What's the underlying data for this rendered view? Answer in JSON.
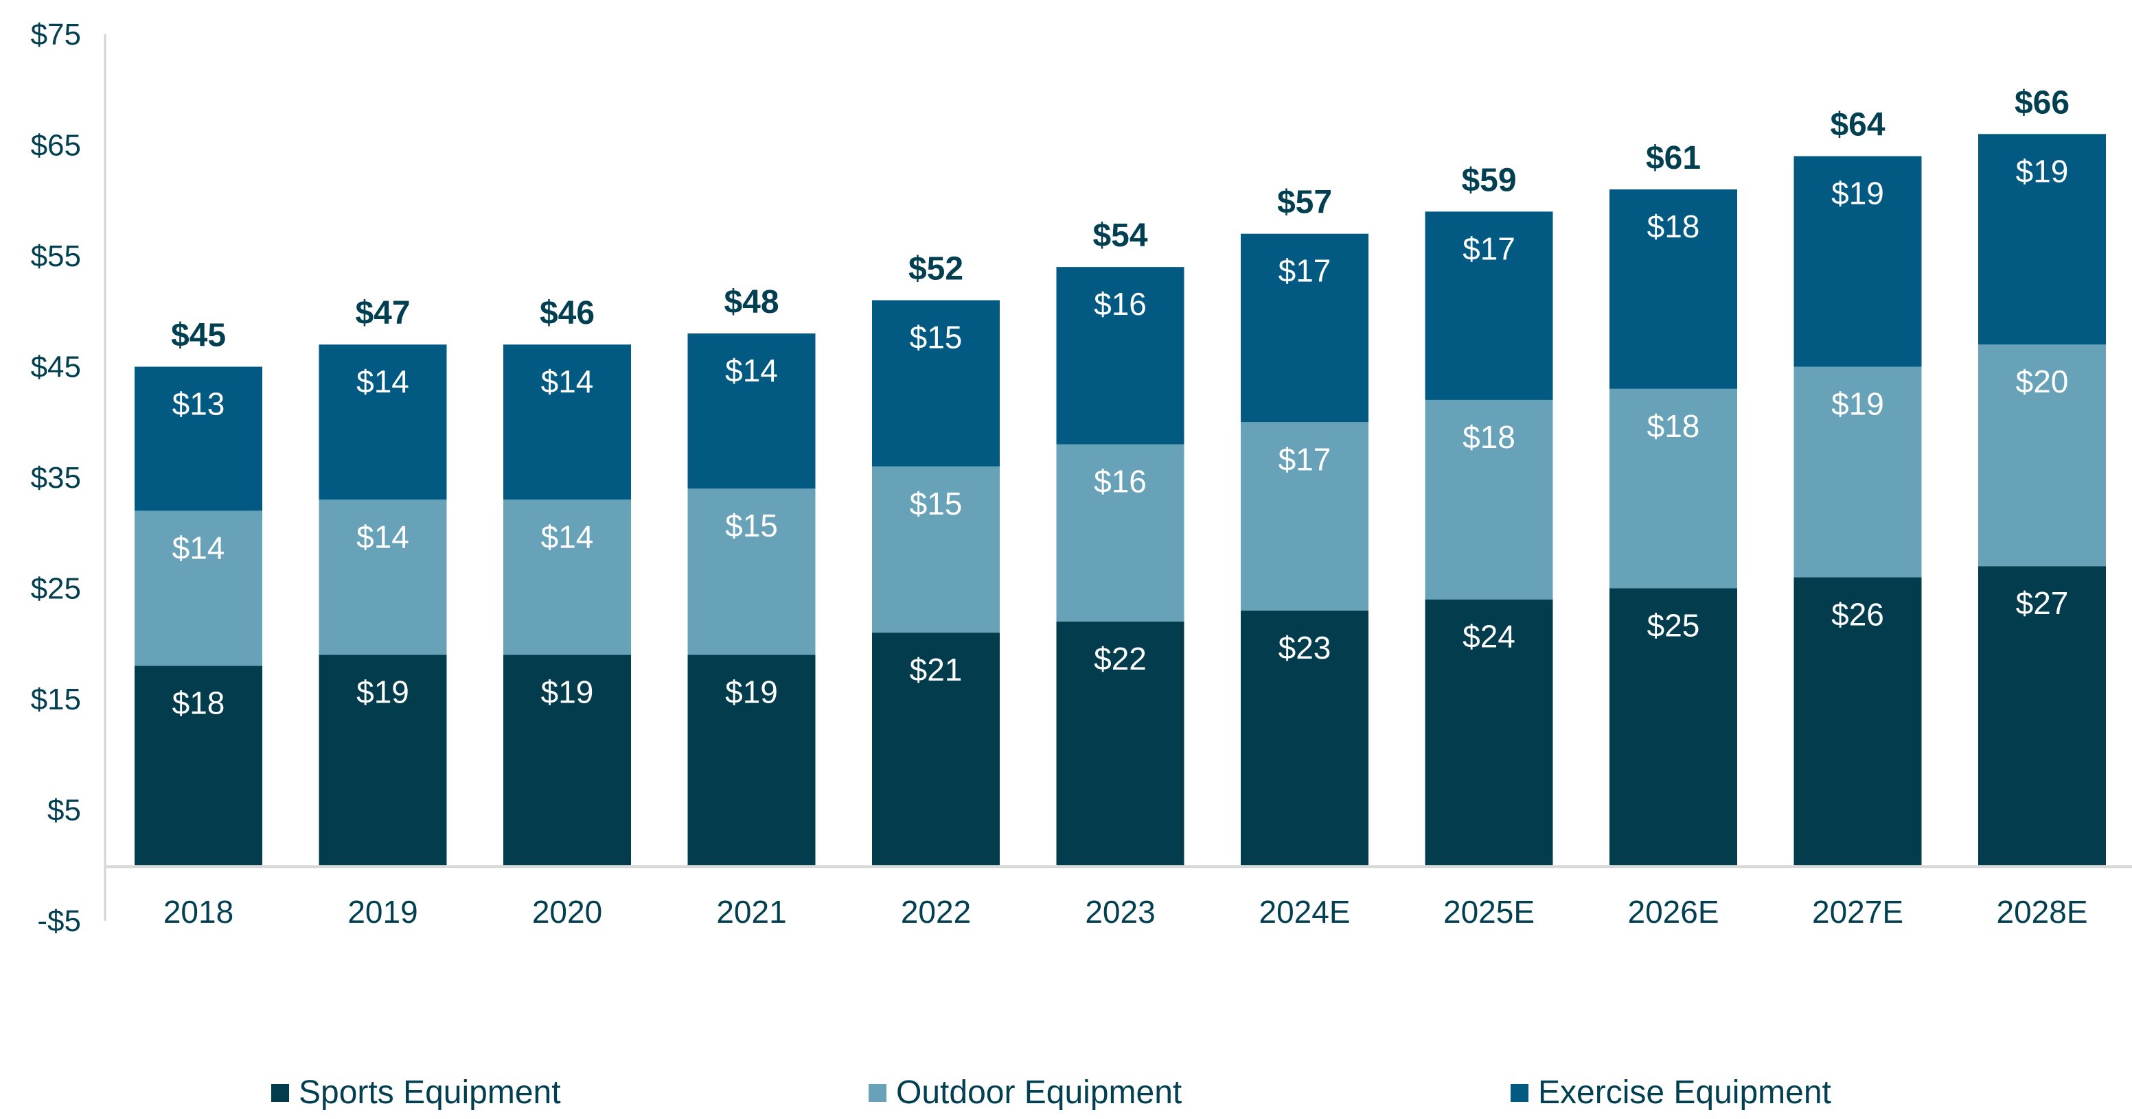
{
  "chart_data": {
    "type": "bar",
    "stacked": true,
    "title": "",
    "xlabel": "",
    "ylabel": "",
    "ylim": [
      -5,
      75
    ],
    "yticks": [
      75,
      65,
      55,
      45,
      35,
      25,
      15,
      5,
      -5
    ],
    "ytick_labels": [
      "$75",
      "$65",
      "$55",
      "$45",
      "$35",
      "$25",
      "$15",
      "$5",
      "-$5"
    ],
    "categories": [
      "2018",
      "2019",
      "2020",
      "2021",
      "2022",
      "2023",
      "2024E",
      "2025E",
      "2026E",
      "2027E",
      "2028E"
    ],
    "series": [
      {
        "name": "Sports Equipment",
        "color": "#023c4d",
        "values": [
          18,
          19,
          19,
          19,
          21,
          22,
          23,
          24,
          25,
          26,
          27
        ],
        "labels": [
          "$18",
          "$19",
          "$19",
          "$19",
          "$21",
          "$22",
          "$23",
          "$24",
          "$25",
          "$26",
          "$27"
        ]
      },
      {
        "name": "Outdoor Equipment",
        "color": "#68a2b9",
        "values": [
          14,
          14,
          14,
          15,
          15,
          16,
          17,
          18,
          18,
          19,
          20
        ],
        "labels": [
          "$14",
          "$14",
          "$14",
          "$15",
          "$15",
          "$16",
          "$17",
          "$18",
          "$18",
          "$19",
          "$20"
        ]
      },
      {
        "name": "Exercise Equipment",
        "color": "#025a82",
        "values": [
          13,
          14,
          14,
          14,
          15,
          16,
          17,
          17,
          18,
          19,
          19
        ],
        "labels": [
          "$13",
          "$14",
          "$14",
          "$14",
          "$15",
          "$16",
          "$17",
          "$17",
          "$18",
          "$19",
          "$19"
        ]
      }
    ],
    "totals": [
      45,
      47,
      46,
      48,
      52,
      54,
      57,
      59,
      61,
      64,
      66
    ],
    "total_labels": [
      "$45",
      "$47",
      "$46",
      "$48",
      "$52",
      "$54",
      "$57",
      "$59",
      "$61",
      "$64",
      "$66"
    ],
    "grid": false,
    "legend_position": "bottom"
  },
  "legend": {
    "items": [
      {
        "label": "Sports Equipment",
        "color": "#023c4d"
      },
      {
        "label": "Outdoor Equipment",
        "color": "#68a2b9"
      },
      {
        "label": "Exercise Equipment",
        "color": "#025a82"
      }
    ]
  },
  "colors": {
    "text": "#023f51",
    "axis": "#d9d2cc",
    "baseline": "#d9d9d9"
  }
}
